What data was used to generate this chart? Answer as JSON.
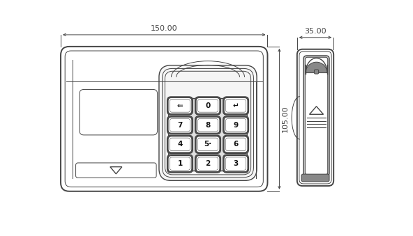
{
  "bg_color": "#ffffff",
  "line_color": "#444444",
  "lw_main": 1.4,
  "lw_thin": 0.7,
  "lw_med": 1.0,
  "fig_width": 5.92,
  "fig_height": 3.39,
  "dim_150": "150.00",
  "dim_35": "35.00",
  "dim_105": "105.00",
  "keypad_labels": [
    [
      "1",
      "2",
      "3"
    ],
    [
      "4",
      "5·",
      "6"
    ],
    [
      "7",
      "8",
      "9"
    ],
    [
      "⇐",
      "0",
      "↵"
    ]
  ]
}
